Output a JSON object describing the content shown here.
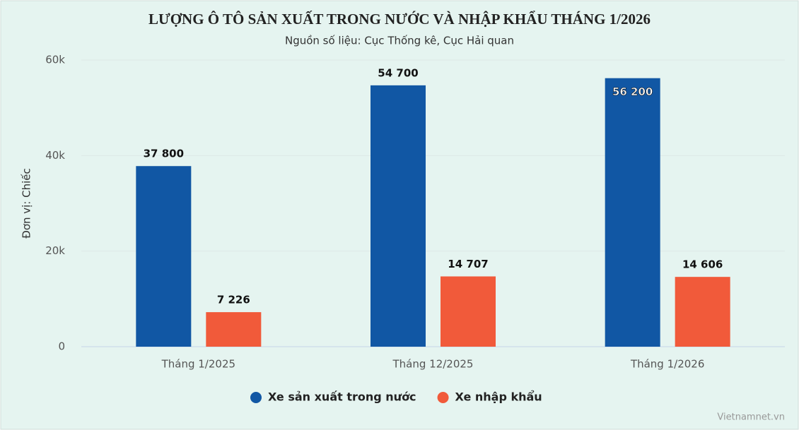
{
  "chart_data": {
    "type": "bar",
    "title": "LƯỢNG Ô TÔ SẢN XUẤT TRONG NƯỚC VÀ NHẬP KHẨU THÁNG 1/2026",
    "subtitle": "Nguồn số liệu: Cục Thống kê, Cục Hải quan",
    "y_label": "Đơn vị: Chiếc",
    "credit": "Vietnamnet.vn",
    "categories": [
      "Tháng 1/2025",
      "Tháng 12/2025",
      "Tháng 1/2026"
    ],
    "series": [
      {
        "name": "Xe sản xuất trong nước",
        "color": "#1157a4",
        "values": [
          37800,
          54700,
          56200
        ],
        "value_labels": [
          "37 800",
          "54 700",
          "56 200"
        ]
      },
      {
        "name": "Xe nhập khẩu",
        "color": "#f15a3a",
        "values": [
          7226,
          14707,
          14606
        ],
        "value_labels": [
          "7 226",
          "14 707",
          "14 606"
        ]
      }
    ],
    "ylim": [
      0,
      60000
    ],
    "yticks": [
      0,
      {
        "value": 20000,
        "label": "20k"
      },
      {
        "value": 40000,
        "label": "40k"
      },
      {
        "value": 60000,
        "label": "60k"
      }
    ],
    "grid": true,
    "legend": "bottom"
  }
}
